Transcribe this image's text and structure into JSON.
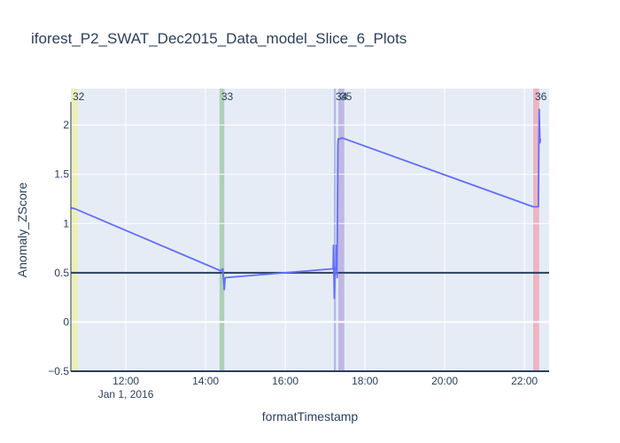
{
  "chart_data": {
    "type": "line",
    "title": "iforest_P2_SWAT_Dec2015_Data_model_Slice_6_Plots",
    "xlabel": "formatTimestamp",
    "ylabel": "Anomaly_ZScore",
    "x_range_hours": [
      10.62,
      22.62
    ],
    "ylim": [
      -0.5,
      2.37
    ],
    "x_ticks": [
      {
        "value": 12,
        "label": "12:00"
      },
      {
        "value": 14,
        "label": "14:00"
      },
      {
        "value": 16,
        "label": "16:00"
      },
      {
        "value": 18,
        "label": "18:00"
      },
      {
        "value": 20,
        "label": "20:00"
      },
      {
        "value": 22,
        "label": "22:00"
      }
    ],
    "x_date_label": "Jan 1, 2016",
    "y_ticks": [
      {
        "value": -0.5,
        "label": "−0.5"
      },
      {
        "value": 0,
        "label": "0"
      },
      {
        "value": 0.5,
        "label": "0.5"
      },
      {
        "value": 1,
        "label": "1"
      },
      {
        "value": 1.5,
        "label": "1.5"
      },
      {
        "value": 2,
        "label": "2"
      }
    ],
    "threshold": 0.5,
    "series": [
      {
        "color": "#636efa",
        "points": [
          [
            10.62,
            1.16
          ],
          [
            10.72,
            1.15
          ],
          [
            14.38,
            0.52
          ],
          [
            14.43,
            0.54
          ],
          [
            14.47,
            0.33
          ],
          [
            14.49,
            0.45
          ],
          [
            17.2,
            0.54
          ],
          [
            17.21,
            0.78
          ],
          [
            17.23,
            0.24
          ],
          [
            17.25,
            0.55
          ],
          [
            17.27,
            0.53
          ],
          [
            17.28,
            0.78
          ],
          [
            17.3,
            0.45
          ],
          [
            17.32,
            1.8
          ],
          [
            17.33,
            1.86
          ],
          [
            17.38,
            1.86
          ],
          [
            17.42,
            1.87
          ],
          [
            22.22,
            1.17
          ],
          [
            22.35,
            1.17
          ],
          [
            22.37,
            2.16
          ],
          [
            22.39,
            1.82
          ],
          [
            22.4,
            1.86
          ]
        ]
      }
    ],
    "bands": [
      {
        "label": "32",
        "x0": 10.62,
        "x1": 10.8,
        "color": "#eef0a8"
      },
      {
        "label": "33",
        "x0": 14.35,
        "x1": 14.47,
        "color": "#9cc5a0"
      },
      {
        "label": "34",
        "x0": 17.22,
        "x1": 17.27,
        "color": "#9ea7e8"
      },
      {
        "label": "35",
        "x0": 17.33,
        "x1": 17.48,
        "color": "#b3a6dc"
      },
      {
        "label": "36",
        "x0": 22.22,
        "x1": 22.37,
        "color": "#eda3b0"
      }
    ]
  }
}
